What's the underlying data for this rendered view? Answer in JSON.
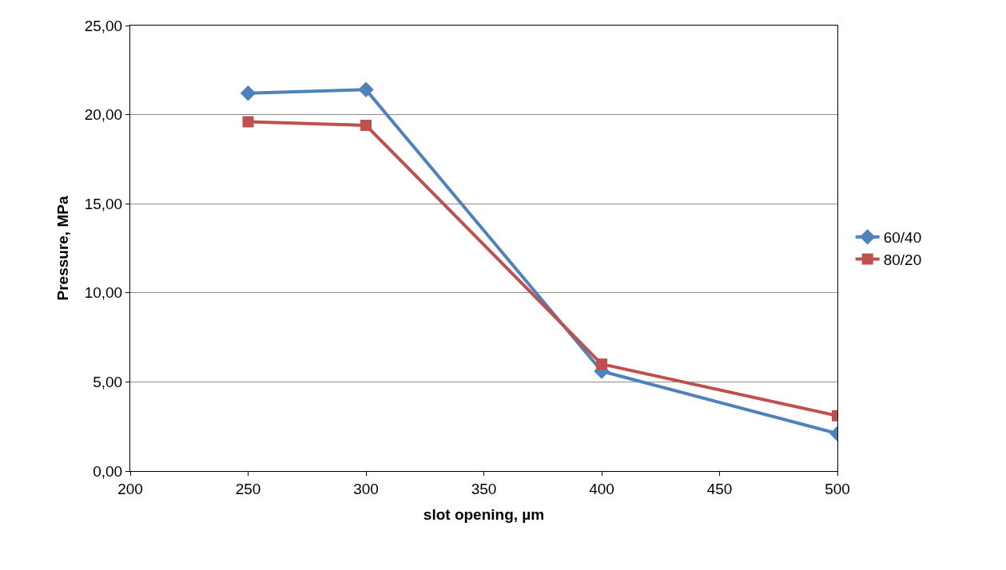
{
  "chart_data": {
    "type": "line",
    "xlabel": "slot opening, µm",
    "ylabel": "Pressure, MPa",
    "x": [
      250,
      300,
      400,
      500
    ],
    "series": [
      {
        "name": "60/40",
        "color": "#4f81bd",
        "marker": "diamond",
        "values": [
          21.2,
          21.4,
          5.6,
          2.1
        ]
      },
      {
        "name": "80/20",
        "color": "#c0504d",
        "marker": "square",
        "values": [
          19.6,
          19.4,
          6.0,
          3.1
        ]
      }
    ],
    "xlim": [
      200,
      500
    ],
    "xticks": [
      200,
      250,
      300,
      350,
      400,
      450,
      500
    ],
    "ylim": [
      0,
      25
    ],
    "yticks": [
      {
        "value": 0,
        "label": "0,00"
      },
      {
        "value": 5,
        "label": "5,00"
      },
      {
        "value": 10,
        "label": "10,00"
      },
      {
        "value": 15,
        "label": "15,00"
      },
      {
        "value": 20,
        "label": "20,00"
      },
      {
        "value": 25,
        "label": "25,00"
      }
    ],
    "grid": "y",
    "legend": "right",
    "line_style": "solid"
  }
}
